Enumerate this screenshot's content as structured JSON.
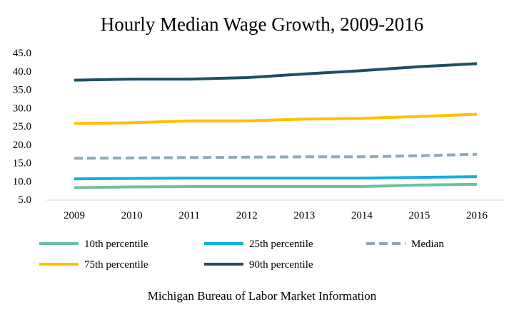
{
  "chart_data": {
    "type": "line",
    "title": "Hourly Median Wage Growth, 2009-2016",
    "source": "Michigan Bureau of Labor Market Information",
    "x": [
      "2009",
      "2010",
      "2011",
      "2012",
      "2013",
      "2014",
      "2015",
      "2016"
    ],
    "ylim": [
      5,
      45
    ],
    "y_ticks": [
      "5.0",
      "10.0",
      "15.0",
      "20.0",
      "25.0",
      "30.0",
      "35.0",
      "40.0",
      "45.0"
    ],
    "grid": false,
    "legend_position": "bottom",
    "series": [
      {
        "name": "10th percentile",
        "color": "#70bfa0",
        "dashed": false,
        "values": [
          8.2,
          8.4,
          8.5,
          8.5,
          8.5,
          8.5,
          8.9,
          9.1
        ]
      },
      {
        "name": "25th percentile",
        "color": "#15aee0",
        "dashed": false,
        "values": [
          10.6,
          10.7,
          10.8,
          10.8,
          10.8,
          10.8,
          11.0,
          11.2
        ]
      },
      {
        "name": "Median",
        "color": "#8fabb8",
        "dashed": true,
        "values": [
          16.2,
          16.3,
          16.4,
          16.5,
          16.6,
          16.6,
          16.9,
          17.3
        ]
      },
      {
        "name": "75th percentile",
        "color": "#ffc000",
        "dashed": false,
        "values": [
          25.7,
          25.9,
          26.4,
          26.4,
          26.9,
          27.1,
          27.6,
          28.2
        ]
      },
      {
        "name": "90th percentile",
        "color": "#1f4e63",
        "dashed": false,
        "values": [
          37.5,
          37.8,
          37.8,
          38.2,
          39.2,
          40.1,
          41.2,
          42.0
        ]
      }
    ]
  }
}
